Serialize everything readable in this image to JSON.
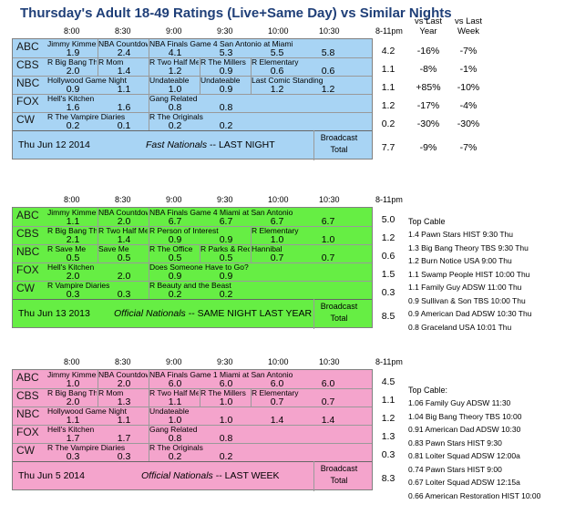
{
  "title": "Thursday's Adult 18-49 Ratings (Live+Same Day) vs Similar Nights",
  "headers": {
    "times": [
      "8:00",
      "8:30",
      "9:00",
      "9:30",
      "10:00",
      "10:30"
    ],
    "range": "8-11pm",
    "vs_year": "vs Last\nYear",
    "vs_week": "vs Last\nWeek"
  },
  "colors": {
    "block1": "#a8d4f4",
    "block2": "#66ee44",
    "block3": "#f4a4cc"
  },
  "blocks": [
    {
      "rows": [
        {
          "net": "ABC",
          "shows": [
            {
              "t": "Jimmy Kimmel",
              "c": 0,
              "w": 1
            },
            {
              "t": "NBA Countdown",
              "c": 1,
              "w": 1
            },
            {
              "t": "NBA Finals Game 4 San Antonio at Miami",
              "c": 2,
              "w": 4
            }
          ],
          "vals": [
            "1.9",
            "2.4",
            "4.1",
            "5.3",
            "5.5",
            "5.8"
          ],
          "total": "4.2",
          "yoy": "-16%",
          "wow": "-7%"
        },
        {
          "net": "CBS",
          "shows": [
            {
              "t": "R Big Bang Theory",
              "c": 0,
              "w": 1
            },
            {
              "t": "R Mom",
              "c": 1,
              "w": 1
            },
            {
              "t": "R Two Half Men",
              "c": 2,
              "w": 1
            },
            {
              "t": "R The Millers",
              "c": 3,
              "w": 1
            },
            {
              "t": "R Elementary",
              "c": 4,
              "w": 2
            }
          ],
          "vals": [
            "2.0",
            "1.4",
            "1.2",
            "0.9",
            "0.6",
            "0.6"
          ],
          "total": "1.1",
          "yoy": "-8%",
          "wow": "-1%"
        },
        {
          "net": "NBC",
          "shows": [
            {
              "t": "Hollywood Game Night",
              "c": 0,
              "w": 2
            },
            {
              "t": "Undateable",
              "c": 2,
              "w": 1
            },
            {
              "t": "Undateable",
              "c": 3,
              "w": 1
            },
            {
              "t": "Last Comic Standing",
              "c": 4,
              "w": 2
            }
          ],
          "vals": [
            "0.9",
            "1.1",
            "1.0",
            "0.9",
            "1.2",
            "1.2"
          ],
          "total": "1.1",
          "yoy": "+85%",
          "wow": "-10%"
        },
        {
          "net": "FOX",
          "shows": [
            {
              "t": "Hell's Kitchen",
              "c": 0,
              "w": 2
            },
            {
              "t": "Gang Related",
              "c": 2,
              "w": 2
            }
          ],
          "vals": [
            "1.6",
            "1.6",
            "0.8",
            "0.8",
            "",
            ""
          ],
          "total": "1.2",
          "yoy": "-17%",
          "wow": "-4%"
        },
        {
          "net": "CW",
          "shows": [
            {
              "t": "R The Vampire Diaries",
              "c": 0,
              "w": 2
            },
            {
              "t": "R The Originals",
              "c": 2,
              "w": 2
            }
          ],
          "vals": [
            "0.2",
            "0.1",
            "0.2",
            "0.2",
            "",
            ""
          ],
          "total": "0.2",
          "yoy": "-30%",
          "wow": "-30%"
        }
      ],
      "date": "Thu Jun 12 2014",
      "nat_label": "Fast Nationals",
      "nat_suffix": "-- LAST NIGHT",
      "broadcast": "Broadcast",
      "total_label": "Total",
      "grand": "7.7",
      "grand_yoy": "-9%",
      "grand_wow": "-7%"
    },
    {
      "rows": [
        {
          "net": "ABC",
          "shows": [
            {
              "t": "Jimmy Kimmel",
              "c": 0,
              "w": 1
            },
            {
              "t": "NBA Countdown",
              "c": 1,
              "w": 1
            },
            {
              "t": "NBA Finals Game 4 Miami at San Antonio",
              "c": 2,
              "w": 4
            }
          ],
          "vals": [
            "1.1",
            "2.0",
            "6.7",
            "6.7",
            "6.7",
            "6.7"
          ],
          "total": "5.0"
        },
        {
          "net": "CBS",
          "shows": [
            {
              "t": "R Big Bang Theory",
              "c": 0,
              "w": 1
            },
            {
              "t": "R Two Half Men",
              "c": 1,
              "w": 1
            },
            {
              "t": "R Person of Interest",
              "c": 2,
              "w": 2
            },
            {
              "t": "R Elementary",
              "c": 4,
              "w": 2
            }
          ],
          "vals": [
            "2.1",
            "1.4",
            "0.9",
            "0.9",
            "1.0",
            "1.0"
          ],
          "total": "1.2"
        },
        {
          "net": "NBC",
          "shows": [
            {
              "t": "R Save Me",
              "c": 0,
              "w": 1
            },
            {
              "t": "Save Me",
              "c": 1,
              "w": 1
            },
            {
              "t": "R The Office",
              "c": 2,
              "w": 1
            },
            {
              "t": "R Parks & Rec",
              "c": 3,
              "w": 1
            },
            {
              "t": "Hannibal",
              "c": 4,
              "w": 2
            }
          ],
          "vals": [
            "0.5",
            "0.5",
            "0.5",
            "0.5",
            "0.7",
            "0.7"
          ],
          "total": "0.6"
        },
        {
          "net": "FOX",
          "shows": [
            {
              "t": "Hell's Kitchen",
              "c": 0,
              "w": 2
            },
            {
              "t": "Does Someone Have to Go?",
              "c": 2,
              "w": 2
            }
          ],
          "vals": [
            "2.0",
            "2.0",
            "0.9",
            "0.9",
            "",
            ""
          ],
          "total": "1.5"
        },
        {
          "net": "CW",
          "shows": [
            {
              "t": "R Vampire Diaries",
              "c": 0,
              "w": 2
            },
            {
              "t": "R Beauty and the Beast",
              "c": 2,
              "w": 2
            }
          ],
          "vals": [
            "0.3",
            "0.3",
            "0.2",
            "0.2",
            "",
            ""
          ],
          "total": "0.3"
        }
      ],
      "date": "Thu Jun 13 2013",
      "nat_label": "Official Nationals",
      "nat_suffix": "-- SAME NIGHT LAST YEAR",
      "broadcast": "Broadcast",
      "total_label": "Total",
      "grand": "8.5"
    },
    {
      "rows": [
        {
          "net": "ABC",
          "shows": [
            {
              "t": "Jimmy Kimmel",
              "c": 0,
              "w": 1
            },
            {
              "t": "NBA Countdown",
              "c": 1,
              "w": 1
            },
            {
              "t": "NBA Finals Game 1 Miami at San Antonio",
              "c": 2,
              "w": 4
            }
          ],
          "vals": [
            "1.0",
            "2.0",
            "6.0",
            "6.0",
            "6.0",
            "6.0"
          ],
          "total": "4.5"
        },
        {
          "net": "CBS",
          "shows": [
            {
              "t": "R Big Bang Theory",
              "c": 0,
              "w": 1
            },
            {
              "t": "R Mom",
              "c": 1,
              "w": 1
            },
            {
              "t": "R Two Half Men",
              "c": 2,
              "w": 1
            },
            {
              "t": "R The Millers",
              "c": 3,
              "w": 1
            },
            {
              "t": "R Elementary",
              "c": 4,
              "w": 2
            }
          ],
          "vals": [
            "2.0",
            "1.3",
            "1.1",
            "1.0",
            "0.7",
            "0.7"
          ],
          "total": "1.1"
        },
        {
          "net": "NBC",
          "shows": [
            {
              "t": "Hollywood Game Night",
              "c": 0,
              "w": 2
            },
            {
              "t": "Undateable",
              "c": 2,
              "w": 2
            }
          ],
          "vals": [
            "1.1",
            "1.1",
            "1.0",
            "1.0",
            "1.4",
            "1.4"
          ],
          "total": "1.2"
        },
        {
          "net": "FOX",
          "shows": [
            {
              "t": "Hell's Kitchen",
              "c": 0,
              "w": 2
            },
            {
              "t": "Gang Related",
              "c": 2,
              "w": 2
            }
          ],
          "vals": [
            "1.7",
            "1.7",
            "0.8",
            "0.8",
            "",
            ""
          ],
          "total": "1.3"
        },
        {
          "net": "CW",
          "shows": [
            {
              "t": "R The Vampire Diaries",
              "c": 0,
              "w": 2
            },
            {
              "t": "R The Originals",
              "c": 2,
              "w": 2
            }
          ],
          "vals": [
            "0.3",
            "0.3",
            "0.2",
            "0.2",
            "",
            ""
          ],
          "total": "0.3"
        }
      ],
      "date": "Thu Jun 5 2014",
      "nat_label": "Official Nationals",
      "nat_suffix": "-- LAST WEEK",
      "broadcast": "Broadcast",
      "total_label": "Total",
      "grand": "8.3"
    }
  ],
  "top_cable_1": {
    "title": "Top Cable",
    "items": [
      "1.4 Pawn Stars HIST 9:30 Thu",
      "1.3 Big Bang Theory TBS 9:30 Thu",
      "1.2 Burn Notice USA 9:00 Thu",
      "1.1 Swamp People HIST 10:00 Thu",
      "1.1 Family Guy ADSW 11:00 Thu",
      "0.9 Sullivan & Son TBS 10:00 Thu",
      "0.9 American Dad ADSW 10:30 Thu",
      "0.8 Graceland USA 10:01 Thu"
    ]
  },
  "top_cable_2": {
    "title": "Top Cable:",
    "items": [
      "1.06 Family Guy ADSW 11:30",
      "1.04 Big Bang Theory TBS 10:00",
      "0.91 American Dad ADSW 10:30",
      "0.83 Pawn Stars HIST 9:30",
      "0.81 Loiter Squad ADSW 12:00a",
      "0.74 Pawn Stars HIST 9:00",
      "0.67 Loiter Squad ADSW 12:15a",
      "0.66 American Restoration HIST 10:00"
    ]
  }
}
